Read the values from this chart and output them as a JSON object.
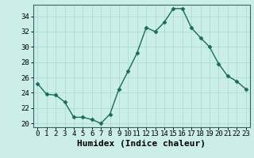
{
  "xlabel": "Humidex (Indice chaleur)",
  "x": [
    0,
    1,
    2,
    3,
    4,
    5,
    6,
    7,
    8,
    9,
    10,
    11,
    12,
    13,
    14,
    15,
    16,
    17,
    18,
    19,
    20,
    21,
    22,
    23
  ],
  "y": [
    25.2,
    23.8,
    23.7,
    22.8,
    20.8,
    20.8,
    20.5,
    20.0,
    21.2,
    24.5,
    26.8,
    29.2,
    32.5,
    32.0,
    33.2,
    35.0,
    35.0,
    32.5,
    31.2,
    30.0,
    27.8,
    26.2,
    25.5,
    24.5
  ],
  "line_color": "#1a6b5a",
  "marker": "D",
  "marker_size": 2.5,
  "bg_color": "#cceee8",
  "grid_color": "#aaddda",
  "ylim": [
    19.5,
    35.5
  ],
  "yticks": [
    20,
    22,
    24,
    26,
    28,
    30,
    32,
    34
  ],
  "xlim": [
    -0.5,
    23.5
  ],
  "xticks": [
    0,
    1,
    2,
    3,
    4,
    5,
    6,
    7,
    8,
    9,
    10,
    11,
    12,
    13,
    14,
    15,
    16,
    17,
    18,
    19,
    20,
    21,
    22,
    23
  ],
  "tick_fontsize": 6.5,
  "xlabel_fontsize": 8,
  "spine_color": "#336666",
  "linewidth": 1.0
}
